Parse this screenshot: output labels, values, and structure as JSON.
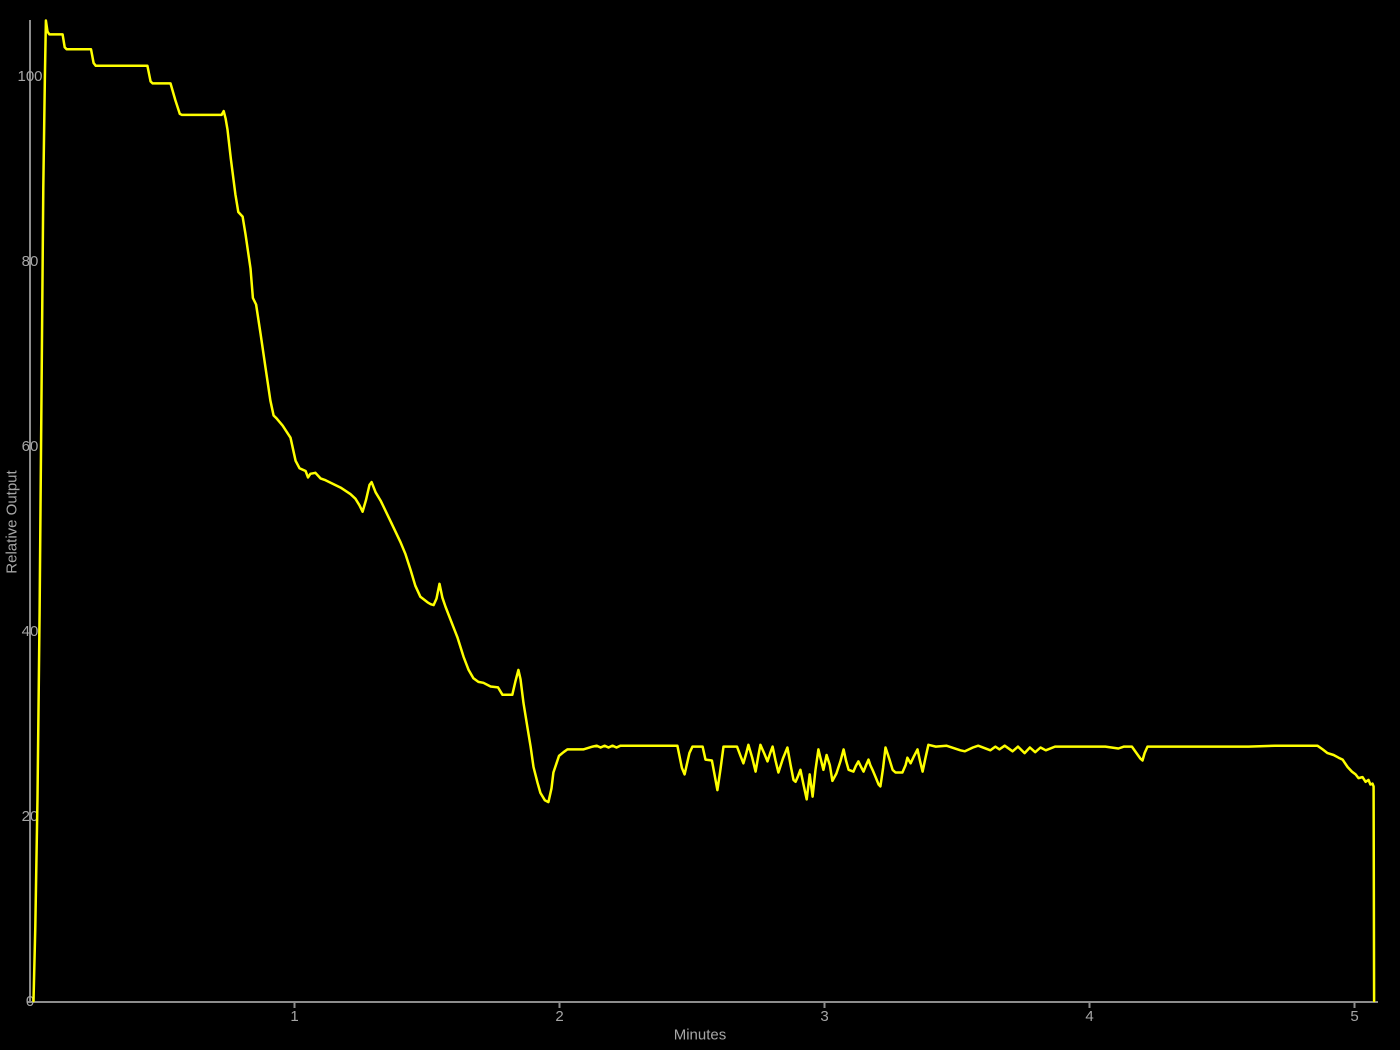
{
  "chart_data": {
    "type": "line",
    "xlabel": "Minutes",
    "ylabel": "Relative Output",
    "x_ticks": [
      1,
      2,
      3,
      4,
      5
    ],
    "y_ticks": [
      0,
      20,
      40,
      60,
      80,
      100
    ],
    "xlim": [
      0,
      5.17
    ],
    "ylim": [
      0,
      108
    ],
    "grid": false,
    "legend": "none",
    "background_color": "#000000",
    "line_color": "#ffff00",
    "axis_color": "#8c8c8c",
    "tick_label_color": "#a6a6a6",
    "series": [
      {
        "name": "Relative Output",
        "points": [
          [
            0.015,
            0
          ],
          [
            0.022,
            8
          ],
          [
            0.03,
            22
          ],
          [
            0.038,
            42
          ],
          [
            0.046,
            68
          ],
          [
            0.052,
            88
          ],
          [
            0.058,
            100
          ],
          [
            0.062,
            106
          ],
          [
            0.068,
            104.8
          ],
          [
            0.075,
            104.5
          ],
          [
            0.125,
            104.5
          ],
          [
            0.133,
            103.1
          ],
          [
            0.14,
            102.9
          ],
          [
            0.232,
            102.9
          ],
          [
            0.242,
            101.4
          ],
          [
            0.25,
            101.1
          ],
          [
            0.445,
            101.1
          ],
          [
            0.457,
            99.4
          ],
          [
            0.465,
            99.2
          ],
          [
            0.532,
            99.2
          ],
          [
            0.55,
            97.4
          ],
          [
            0.567,
            95.9
          ],
          [
            0.575,
            95.8
          ],
          [
            0.725,
            95.8
          ],
          [
            0.733,
            96.2
          ],
          [
            0.74,
            95.4
          ],
          [
            0.747,
            94.2
          ],
          [
            0.76,
            91.0
          ],
          [
            0.777,
            87.2
          ],
          [
            0.788,
            85.3
          ],
          [
            0.804,
            84.8
          ],
          [
            0.815,
            82.9
          ],
          [
            0.834,
            79.2
          ],
          [
            0.843,
            76.0
          ],
          [
            0.855,
            75.3
          ],
          [
            0.872,
            72.1
          ],
          [
            0.891,
            68.4
          ],
          [
            0.909,
            64.9
          ],
          [
            0.921,
            63.3
          ],
          [
            0.932,
            63.0
          ],
          [
            0.955,
            62.2
          ],
          [
            0.985,
            60.9
          ],
          [
            1.004,
            58.4
          ],
          [
            1.019,
            57.6
          ],
          [
            1.042,
            57.3
          ],
          [
            1.051,
            56.6
          ],
          [
            1.06,
            57.0
          ],
          [
            1.079,
            57.1
          ],
          [
            1.098,
            56.5
          ],
          [
            1.117,
            56.3
          ],
          [
            1.174,
            55.5
          ],
          [
            1.211,
            54.8
          ],
          [
            1.23,
            54.3
          ],
          [
            1.245,
            53.6
          ],
          [
            1.257,
            52.9
          ],
          [
            1.27,
            54.2
          ],
          [
            1.283,
            55.8
          ],
          [
            1.291,
            56.1
          ],
          [
            1.306,
            55.0
          ],
          [
            1.325,
            54.1
          ],
          [
            1.362,
            51.9
          ],
          [
            1.4,
            49.6
          ],
          [
            1.419,
            48.3
          ],
          [
            1.438,
            46.6
          ],
          [
            1.456,
            44.9
          ],
          [
            1.475,
            43.7
          ],
          [
            1.502,
            43.1
          ],
          [
            1.514,
            42.9
          ],
          [
            1.525,
            42.8
          ],
          [
            1.536,
            43.5
          ],
          [
            1.547,
            45.1
          ],
          [
            1.558,
            43.6
          ],
          [
            1.57,
            42.6
          ],
          [
            1.6,
            40.4
          ],
          [
            1.615,
            39.3
          ],
          [
            1.638,
            37.2
          ],
          [
            1.657,
            35.8
          ],
          [
            1.675,
            34.9
          ],
          [
            1.694,
            34.5
          ],
          [
            1.713,
            34.4
          ],
          [
            1.74,
            34.0
          ],
          [
            1.768,
            33.9
          ],
          [
            1.785,
            33.1
          ],
          [
            1.822,
            33.1
          ],
          [
            1.834,
            34.6
          ],
          [
            1.845,
            35.8
          ],
          [
            1.853,
            34.8
          ],
          [
            1.864,
            32.2
          ],
          [
            1.879,
            29.6
          ],
          [
            1.891,
            27.5
          ],
          [
            1.902,
            25.3
          ],
          [
            1.917,
            23.6
          ],
          [
            1.928,
            22.5
          ],
          [
            1.945,
            21.7
          ],
          [
            1.958,
            21.5
          ],
          [
            1.97,
            23.0
          ],
          [
            1.977,
            24.7
          ],
          [
            1.998,
            26.5
          ],
          [
            2.015,
            26.9
          ],
          [
            2.03,
            27.2
          ],
          [
            2.09,
            27.2
          ],
          [
            2.125,
            27.5
          ],
          [
            2.14,
            27.6
          ],
          [
            2.155,
            27.4
          ],
          [
            2.17,
            27.6
          ],
          [
            2.185,
            27.4
          ],
          [
            2.2,
            27.6
          ],
          [
            2.215,
            27.4
          ],
          [
            2.23,
            27.6
          ],
          [
            2.32,
            27.6
          ],
          [
            2.445,
            27.6
          ],
          [
            2.462,
            25.2
          ],
          [
            2.472,
            24.5
          ],
          [
            2.49,
            26.8
          ],
          [
            2.502,
            27.5
          ],
          [
            2.54,
            27.5
          ],
          [
            2.551,
            26.1
          ],
          [
            2.575,
            26.0
          ],
          [
            2.585,
            24.5
          ],
          [
            2.596,
            22.8
          ],
          [
            2.607,
            25.0
          ],
          [
            2.619,
            27.5
          ],
          [
            2.67,
            27.5
          ],
          [
            2.683,
            26.5
          ],
          [
            2.694,
            25.7
          ],
          [
            2.705,
            26.8
          ],
          [
            2.713,
            27.7
          ],
          [
            2.727,
            26.3
          ],
          [
            2.74,
            24.8
          ],
          [
            2.75,
            26.5
          ],
          [
            2.758,
            27.7
          ],
          [
            2.772,
            26.8
          ],
          [
            2.785,
            25.9
          ],
          [
            2.795,
            26.8
          ],
          [
            2.804,
            27.5
          ],
          [
            2.815,
            26.0
          ],
          [
            2.826,
            24.7
          ],
          [
            2.843,
            26.2
          ],
          [
            2.86,
            27.4
          ],
          [
            2.872,
            25.5
          ],
          [
            2.883,
            23.9
          ],
          [
            2.891,
            23.7
          ],
          [
            2.9,
            24.3
          ],
          [
            2.909,
            25.0
          ],
          [
            2.92,
            23.5
          ],
          [
            2.933,
            21.8
          ],
          [
            2.944,
            24.5
          ],
          [
            2.955,
            22.1
          ],
          [
            2.966,
            25.0
          ],
          [
            2.977,
            27.2
          ],
          [
            2.987,
            26.0
          ],
          [
            2.996,
            25.0
          ],
          [
            3.008,
            26.6
          ],
          [
            3.02,
            25.5
          ],
          [
            3.03,
            23.8
          ],
          [
            3.045,
            24.6
          ],
          [
            3.06,
            25.9
          ],
          [
            3.072,
            27.2
          ],
          [
            3.081,
            26.0
          ],
          [
            3.091,
            25.0
          ],
          [
            3.109,
            24.8
          ],
          [
            3.118,
            25.4
          ],
          [
            3.128,
            25.9
          ],
          [
            3.138,
            25.3
          ],
          [
            3.147,
            24.8
          ],
          [
            3.157,
            25.5
          ],
          [
            3.166,
            26.1
          ],
          [
            3.173,
            25.5
          ],
          [
            3.181,
            25.0
          ],
          [
            3.193,
            24.2
          ],
          [
            3.204,
            23.4
          ],
          [
            3.211,
            23.2
          ],
          [
            3.221,
            25.2
          ],
          [
            3.23,
            27.4
          ],
          [
            3.244,
            26.2
          ],
          [
            3.257,
            25.0
          ],
          [
            3.268,
            24.7
          ],
          [
            3.294,
            24.7
          ],
          [
            3.306,
            25.5
          ],
          [
            3.313,
            26.3
          ],
          [
            3.325,
            25.7
          ],
          [
            3.338,
            26.5
          ],
          [
            3.351,
            27.2
          ],
          [
            3.36,
            26.0
          ],
          [
            3.37,
            24.8
          ],
          [
            3.381,
            26.3
          ],
          [
            3.392,
            27.7
          ],
          [
            3.42,
            27.5
          ],
          [
            3.46,
            27.6
          ],
          [
            3.513,
            27.1
          ],
          [
            3.53,
            27.0
          ],
          [
            3.56,
            27.4
          ],
          [
            3.58,
            27.6
          ],
          [
            3.626,
            27.1
          ],
          [
            3.645,
            27.5
          ],
          [
            3.66,
            27.2
          ],
          [
            3.68,
            27.6
          ],
          [
            3.71,
            27.0
          ],
          [
            3.73,
            27.5
          ],
          [
            3.755,
            26.8
          ],
          [
            3.775,
            27.4
          ],
          [
            3.795,
            26.9
          ],
          [
            3.815,
            27.4
          ],
          [
            3.835,
            27.1
          ],
          [
            3.87,
            27.5
          ],
          [
            3.93,
            27.5
          ],
          [
            4.0,
            27.5
          ],
          [
            4.06,
            27.5
          ],
          [
            4.109,
            27.3
          ],
          [
            4.13,
            27.5
          ],
          [
            4.16,
            27.5
          ],
          [
            4.192,
            26.2
          ],
          [
            4.2,
            26.0
          ],
          [
            4.208,
            26.8
          ],
          [
            4.219,
            27.5
          ],
          [
            4.3,
            27.5
          ],
          [
            4.4,
            27.5
          ],
          [
            4.487,
            27.5
          ],
          [
            4.6,
            27.5
          ],
          [
            4.7,
            27.6
          ],
          [
            4.8,
            27.6
          ],
          [
            4.86,
            27.6
          ],
          [
            4.88,
            27.2
          ],
          [
            4.898,
            26.8
          ],
          [
            4.921,
            26.6
          ],
          [
            4.94,
            26.3
          ],
          [
            4.955,
            26.1
          ],
          [
            4.974,
            25.3
          ],
          [
            4.99,
            24.8
          ],
          [
            5.004,
            24.5
          ],
          [
            5.015,
            24.1
          ],
          [
            5.03,
            24.2
          ],
          [
            5.042,
            23.7
          ],
          [
            5.053,
            23.9
          ],
          [
            5.06,
            23.4
          ],
          [
            5.068,
            23.5
          ],
          [
            5.072,
            23.2
          ],
          [
            5.074,
            0
          ]
        ]
      }
    ]
  }
}
